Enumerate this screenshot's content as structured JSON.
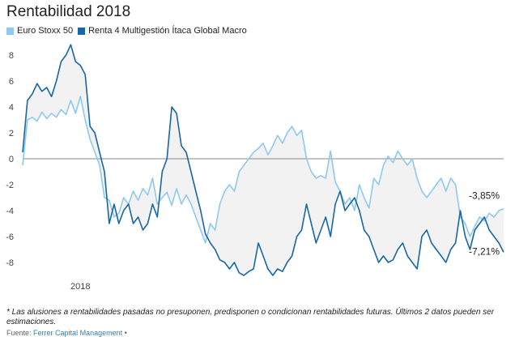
{
  "title": "Rentabilidad 2018",
  "footnote": "* Las alusiones a rentabilidades pasadas no presuponen, predisponen o condicionan rentabilidades futuras. Últimos 2 datos pueden ser estimaciones.",
  "source": {
    "label": "Fuente:",
    "name": "Ferrer Capital Management",
    "bullet": "•"
  },
  "chart_data": {
    "type": "line",
    "ylim": [
      -9.5,
      9
    ],
    "yticks": [
      "8",
      "6",
      "4",
      "2",
      "0",
      "-2",
      "-4",
      "-6",
      "-8"
    ],
    "ytick_values": [
      8,
      6,
      4,
      2,
      0,
      -2,
      -4,
      -6,
      -8
    ],
    "x_range": [
      0,
      100
    ],
    "xtick_label": "2018",
    "xtick_position": 12,
    "legend_position": "top-left",
    "grid": false,
    "series": [
      {
        "name": "Euro Stoxx 50",
        "color": "#8ec9ef",
        "end_label": "-3,85%",
        "points": [
          [
            0,
            -0.5
          ],
          [
            1,
            3.0
          ],
          [
            2,
            3.2
          ],
          [
            3,
            2.9
          ],
          [
            4,
            3.6
          ],
          [
            5,
            3.1
          ],
          [
            6,
            3.5
          ],
          [
            7,
            3.2
          ],
          [
            8,
            3.8
          ],
          [
            9,
            3.4
          ],
          [
            10,
            4.5
          ],
          [
            11,
            3.5
          ],
          [
            12,
            4.8
          ],
          [
            13,
            3.0
          ],
          [
            14,
            1.5
          ],
          [
            15,
            0.5
          ],
          [
            16,
            -0.5
          ],
          [
            17,
            -3.0
          ],
          [
            18,
            -3.2
          ],
          [
            19,
            -4.5
          ],
          [
            20,
            -4.2
          ],
          [
            21,
            -3.0
          ],
          [
            22,
            -3.5
          ],
          [
            23,
            -2.5
          ],
          [
            24,
            -3.2
          ],
          [
            25,
            -2.3
          ],
          [
            26,
            -2.8
          ],
          [
            27,
            -1.5
          ],
          [
            28,
            -3.5
          ],
          [
            29,
            -3.0
          ],
          [
            30,
            -2.6
          ],
          [
            31,
            -3.6
          ],
          [
            32,
            -2.3
          ],
          [
            33,
            -3.5
          ],
          [
            34,
            -2.8
          ],
          [
            35,
            -3.5
          ],
          [
            36,
            -4.5
          ],
          [
            37,
            -5.5
          ],
          [
            38,
            -6.5
          ],
          [
            39,
            -5.0
          ],
          [
            40,
            -5.5
          ],
          [
            41,
            -3.5
          ],
          [
            42,
            -2.5
          ],
          [
            43,
            -2.0
          ],
          [
            44,
            -2.5
          ],
          [
            45,
            -1.0
          ],
          [
            46,
            -0.5
          ],
          [
            47,
            0.0
          ],
          [
            48,
            0.5
          ],
          [
            49,
            0.8
          ],
          [
            50,
            1.2
          ],
          [
            51,
            0.3
          ],
          [
            52,
            1.0
          ],
          [
            53,
            1.8
          ],
          [
            54,
            1.2
          ],
          [
            55,
            2.0
          ],
          [
            56,
            2.5
          ],
          [
            57,
            1.8
          ],
          [
            58,
            2.2
          ],
          [
            59,
            0.0
          ],
          [
            60,
            -1.0
          ],
          [
            61,
            -1.5
          ],
          [
            62,
            -1.3
          ],
          [
            63,
            -1.5
          ],
          [
            64,
            0.6
          ],
          [
            65,
            -1.8
          ],
          [
            66,
            -2.5
          ],
          [
            67,
            -3.5
          ],
          [
            68,
            -3.0
          ],
          [
            69,
            -4.0
          ],
          [
            70,
            -2.0
          ],
          [
            71,
            -3.0
          ],
          [
            72,
            -3.8
          ],
          [
            73,
            -1.5
          ],
          [
            74,
            -2.0
          ],
          [
            75,
            -0.5
          ],
          [
            76,
            0.2
          ],
          [
            77,
            -0.3
          ],
          [
            78,
            0.6
          ],
          [
            79,
            0.0
          ],
          [
            80,
            -0.5
          ],
          [
            81,
            0.0
          ],
          [
            82,
            -1.5
          ],
          [
            83,
            -2.5
          ],
          [
            84,
            -3.0
          ],
          [
            85,
            -2.5
          ],
          [
            86,
            -2.0
          ],
          [
            87,
            -1.5
          ],
          [
            88,
            -2.5
          ],
          [
            89,
            -1.5
          ],
          [
            90,
            -2.0
          ],
          [
            91,
            -4.5
          ],
          [
            92,
            -5.0
          ],
          [
            93,
            -6.0
          ],
          [
            94,
            -5.2
          ],
          [
            95,
            -4.5
          ],
          [
            96,
            -4.8
          ],
          [
            97,
            -4.2
          ],
          [
            98,
            -4.5
          ],
          [
            99,
            -4.0
          ],
          [
            100,
            -3.85
          ]
        ]
      },
      {
        "name": "Renta 4 Multigestión Ítaca Global Macro",
        "color": "#1767a6",
        "end_label": "-7,21%",
        "points": [
          [
            0,
            0.5
          ],
          [
            1,
            4.5
          ],
          [
            2,
            5.0
          ],
          [
            3,
            5.8
          ],
          [
            4,
            5.2
          ],
          [
            5,
            5.5
          ],
          [
            6,
            4.8
          ],
          [
            7,
            6.0
          ],
          [
            8,
            7.5
          ],
          [
            9,
            8.0
          ],
          [
            10,
            8.8
          ],
          [
            11,
            7.5
          ],
          [
            12,
            7.2
          ],
          [
            13,
            6.5
          ],
          [
            14,
            2.5
          ],
          [
            15,
            2.0
          ],
          [
            16,
            0.5
          ],
          [
            17,
            -1.0
          ],
          [
            18,
            -5.0
          ],
          [
            19,
            -3.5
          ],
          [
            20,
            -5.0
          ],
          [
            21,
            -4.0
          ],
          [
            22,
            -3.5
          ],
          [
            23,
            -5.0
          ],
          [
            24,
            -4.5
          ],
          [
            25,
            -5.5
          ],
          [
            26,
            -5.0
          ],
          [
            27,
            -3.5
          ],
          [
            28,
            -4.5
          ],
          [
            29,
            -1.0
          ],
          [
            30,
            0.0
          ],
          [
            31,
            4.0
          ],
          [
            32,
            3.5
          ],
          [
            33,
            1.0
          ],
          [
            34,
            0.5
          ],
          [
            35,
            -1.0
          ],
          [
            36,
            -2.5
          ],
          [
            37,
            -4.0
          ],
          [
            38,
            -5.8
          ],
          [
            39,
            -6.5
          ],
          [
            40,
            -7.0
          ],
          [
            41,
            -7.8
          ],
          [
            42,
            -8.0
          ],
          [
            43,
            -8.5
          ],
          [
            44,
            -8.0
          ],
          [
            45,
            -8.8
          ],
          [
            46,
            -9.0
          ],
          [
            47,
            -8.7
          ],
          [
            48,
            -8.5
          ],
          [
            49,
            -6.5
          ],
          [
            50,
            -7.5
          ],
          [
            51,
            -8.5
          ],
          [
            52,
            -9.0
          ],
          [
            53,
            -8.5
          ],
          [
            54,
            -8.7
          ],
          [
            55,
            -8.0
          ],
          [
            56,
            -7.5
          ],
          [
            57,
            -6.0
          ],
          [
            58,
            -5.5
          ],
          [
            59,
            -3.5
          ],
          [
            60,
            -5.0
          ],
          [
            61,
            -6.5
          ],
          [
            62,
            -5.5
          ],
          [
            63,
            -4.5
          ],
          [
            64,
            -6.0
          ],
          [
            65,
            -3.5
          ],
          [
            66,
            -2.5
          ],
          [
            67,
            -4.0
          ],
          [
            68,
            -3.5
          ],
          [
            69,
            -3.0
          ],
          [
            70,
            -4.0
          ],
          [
            71,
            -5.5
          ],
          [
            72,
            -6.0
          ],
          [
            73,
            -7.0
          ],
          [
            74,
            -8.0
          ],
          [
            75,
            -7.5
          ],
          [
            76,
            -8.0
          ],
          [
            77,
            -7.8
          ],
          [
            78,
            -7.0
          ],
          [
            79,
            -6.5
          ],
          [
            80,
            -7.5
          ],
          [
            81,
            -8.0
          ],
          [
            82,
            -8.5
          ],
          [
            83,
            -6.0
          ],
          [
            84,
            -5.5
          ],
          [
            85,
            -6.5
          ],
          [
            86,
            -7.0
          ],
          [
            87,
            -7.5
          ],
          [
            88,
            -8.0
          ],
          [
            89,
            -7.0
          ],
          [
            90,
            -6.5
          ],
          [
            91,
            -4.0
          ],
          [
            92,
            -6.0
          ],
          [
            93,
            -7.0
          ],
          [
            94,
            -5.5
          ],
          [
            95,
            -5.0
          ],
          [
            96,
            -4.5
          ],
          [
            97,
            -5.5
          ],
          [
            98,
            -6.0
          ],
          [
            99,
            -6.5
          ],
          [
            100,
            -7.21
          ]
        ]
      }
    ]
  }
}
